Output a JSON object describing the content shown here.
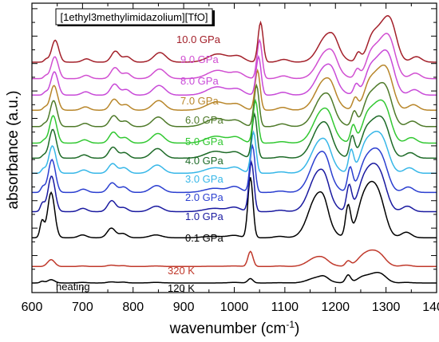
{
  "chart_data": {
    "type": "line",
    "title": "[1ethyl3methylimidazolium][TfO]",
    "xlabel": "wavenumber (cm",
    "xlabel_sup": "-1",
    "xlabel_end": ")",
    "ylabel": "absorbance (a.u.)",
    "xlim": [
      600,
      1400
    ],
    "xticks": [
      600,
      700,
      800,
      900,
      1000,
      1100,
      1200,
      1300,
      1400
    ],
    "grid": false,
    "y_tick_labels_shown": false,
    "peaks": [
      {
        "center": 620,
        "width": 4
      },
      {
        "center": 638,
        "width": 7
      },
      {
        "center": 700,
        "width": 8
      },
      {
        "center": 757,
        "width": 8
      },
      {
        "center": 780,
        "width": 8
      },
      {
        "center": 845,
        "width": 12
      },
      {
        "center": 960,
        "width": 20
      },
      {
        "center": 1000,
        "width": 12
      },
      {
        "center": 1032,
        "width": 5
      },
      {
        "center": 1090,
        "width": 10
      },
      {
        "center": 1165,
        "width": 18
      },
      {
        "center": 1178,
        "width": 8
      },
      {
        "center": 1225,
        "width": 5
      },
      {
        "center": 1250,
        "width": 8
      },
      {
        "center": 1268,
        "width": 18
      },
      {
        "center": 1290,
        "width": 12
      },
      {
        "center": 1340,
        "width": 10
      }
    ],
    "series": [
      {
        "name": "120 K",
        "label": "120 K",
        "color": "#000000",
        "baseline": 0.0,
        "amps": [
          0.06,
          0.12,
          0.02,
          0.04,
          0.03,
          0.02,
          0.0,
          0.02,
          0.16,
          0.01,
          0.2,
          0.1,
          0.28,
          0.05,
          0.28,
          0.22,
          0.02
        ],
        "shift": 0
      },
      {
        "name": "320 K",
        "label": "320 K",
        "color": "#c0392b",
        "baseline": 0.6,
        "amps": [
          0.0,
          0.25,
          0.02,
          0.05,
          0.03,
          0.02,
          0.01,
          0.02,
          0.55,
          0.02,
          0.35,
          0.05,
          0.18,
          0.05,
          0.55,
          0.2,
          0.05
        ],
        "shift": 0
      },
      {
        "name": "0.1 GPa",
        "label": "0.1 GPa",
        "color": "#000000",
        "baseline": 1.65,
        "amps": [
          0.6,
          1.65,
          0.1,
          0.35,
          0.15,
          0.1,
          0.05,
          0.08,
          2.2,
          0.05,
          1.55,
          0.3,
          1.1,
          0.2,
          1.9,
          0.6,
          0.2
        ],
        "shift": 0
      },
      {
        "name": "1.0 GPa",
        "label": "1.0 GPa",
        "color": "#1a1aa0",
        "baseline": 2.6,
        "amps": [
          0.3,
          1.3,
          0.12,
          0.4,
          0.15,
          0.2,
          0.12,
          0.15,
          1.8,
          0.05,
          1.45,
          0.25,
          0.9,
          0.2,
          1.6,
          0.6,
          0.2
        ],
        "shift": 2
      },
      {
        "name": "2.0 GPa",
        "label": "2.0 GPa",
        "color": "#2b3fd0",
        "baseline": 3.3,
        "amps": [
          0.2,
          1.2,
          0.12,
          0.35,
          0.2,
          0.25,
          0.15,
          0.2,
          1.7,
          0.05,
          1.4,
          0.25,
          0.85,
          0.2,
          1.45,
          0.6,
          0.2
        ],
        "shift": 4
      },
      {
        "name": "3.0 GPa",
        "label": "3.0 GPa",
        "color": "#37b7e8",
        "baseline": 4.0,
        "amps": [
          0.15,
          1.0,
          0.12,
          0.35,
          0.2,
          0.3,
          0.2,
          0.2,
          1.5,
          0.05,
          1.2,
          0.2,
          0.8,
          0.25,
          1.35,
          0.6,
          0.2
        ],
        "shift": 6
      },
      {
        "name": "4.0 GPa",
        "label": "4.0 GPa",
        "color": "#1e6b28",
        "baseline": 4.55,
        "amps": [
          0.1,
          1.05,
          0.12,
          0.4,
          0.2,
          0.35,
          0.25,
          0.2,
          1.6,
          0.05,
          1.25,
          0.2,
          0.75,
          0.25,
          1.3,
          0.7,
          0.2
        ],
        "shift": 8
      },
      {
        "name": "5.0 GPa",
        "label": "5.0 GPa",
        "color": "#32c832",
        "baseline": 5.1,
        "amps": [
          0.1,
          1.0,
          0.12,
          0.4,
          0.2,
          0.35,
          0.25,
          0.2,
          1.55,
          0.05,
          1.2,
          0.2,
          0.6,
          0.25,
          1.3,
          0.75,
          0.2
        ],
        "shift": 10
      },
      {
        "name": "6.0 GPa",
        "label": "6.0 GPa",
        "color": "#4f7a2a",
        "baseline": 5.7,
        "amps": [
          0.1,
          0.95,
          0.12,
          0.4,
          0.2,
          0.35,
          0.3,
          0.2,
          1.5,
          0.1,
          1.15,
          0.2,
          0.5,
          0.25,
          1.3,
          0.8,
          0.2
        ],
        "shift": 12
      },
      {
        "name": "7.0 GPa",
        "label": "7.0 GPa",
        "color": "#b8862a",
        "baseline": 6.3,
        "amps": [
          0.1,
          0.9,
          0.12,
          0.4,
          0.2,
          0.35,
          0.3,
          0.2,
          1.45,
          0.1,
          1.1,
          0.2,
          0.4,
          0.25,
          1.3,
          0.85,
          0.2
        ],
        "shift": 14
      },
      {
        "name": "8.0 GPa",
        "label": "8.0 GPa",
        "color": "#c84ad8",
        "baseline": 6.85,
        "amps": [
          0.1,
          0.85,
          0.12,
          0.4,
          0.2,
          0.35,
          0.3,
          0.2,
          1.4,
          0.1,
          1.05,
          0.2,
          0.35,
          0.25,
          1.25,
          0.9,
          0.2
        ],
        "shift": 16
      },
      {
        "name": "9.0 GPa",
        "label": "9.0 GPa",
        "color": "#d14fd1",
        "baseline": 7.45,
        "amps": [
          0.1,
          0.8,
          0.12,
          0.4,
          0.2,
          0.35,
          0.3,
          0.2,
          1.4,
          0.1,
          1.0,
          0.2,
          0.3,
          0.25,
          1.2,
          0.95,
          0.2
        ],
        "shift": 18
      },
      {
        "name": "10.0 GPa",
        "label": "10.0 GPa",
        "color": "#a3202a",
        "baseline": 8.05,
        "amps": [
          0.1,
          0.8,
          0.12,
          0.4,
          0.2,
          0.35,
          0.3,
          0.2,
          1.45,
          0.1,
          1.0,
          0.2,
          0.3,
          0.25,
          1.2,
          1.0,
          0.2
        ],
        "shift": 20
      }
    ],
    "annotations": [
      {
        "text": "heating",
        "color": "#000000"
      }
    ]
  }
}
